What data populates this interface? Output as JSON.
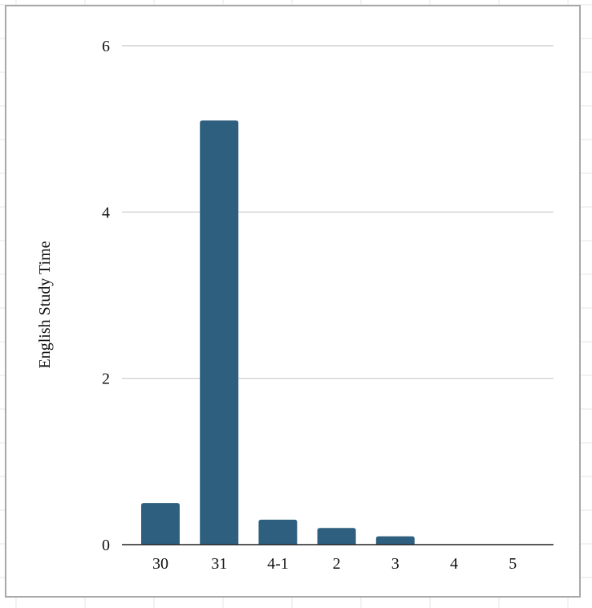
{
  "chart_data": {
    "type": "bar",
    "title": "",
    "xlabel": "",
    "ylabel": "English Study Time",
    "categories": [
      "30",
      "31",
      "4-1",
      "2",
      "3",
      "4",
      "5"
    ],
    "values": [
      0.5,
      5.1,
      0.3,
      0.2,
      0.1,
      0,
      0
    ],
    "ylim": [
      0,
      6
    ],
    "yticks": [
      "0",
      "2",
      "4",
      "6"
    ],
    "grid": true,
    "legend": "none",
    "bar_color": "#2e5f7f",
    "grid_color": "#c8c8c8",
    "axis_color": "#222222"
  }
}
